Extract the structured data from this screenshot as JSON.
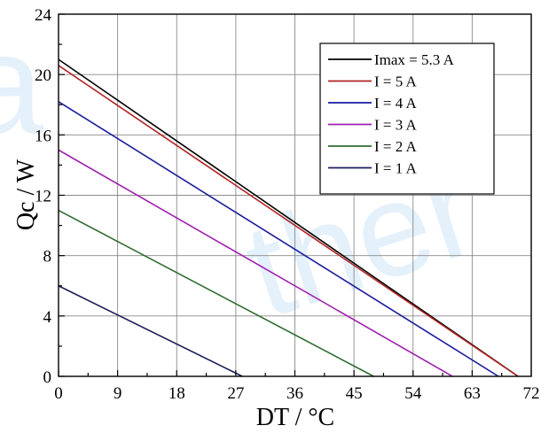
{
  "watermark": {
    "text": "ther",
    "partial_letter": "a"
  },
  "chart_data": {
    "type": "line",
    "title": "",
    "xlabel": "DT / °C",
    "ylabel": "Qc / W",
    "xlim": [
      0,
      72
    ],
    "ylim": [
      0,
      24
    ],
    "xticks": [
      0,
      9,
      18,
      27,
      36,
      45,
      54,
      63,
      72
    ],
    "yticks": [
      0,
      4,
      8,
      12,
      16,
      20,
      24
    ],
    "grid": true,
    "legend_position": "top-right",
    "series": [
      {
        "name": "Imax  = 5.3 A",
        "color": "#000000",
        "x": [
          0,
          70
        ],
        "y": [
          21.0,
          0
        ]
      },
      {
        "name": "I = 5 A",
        "color": "#b22222",
        "x": [
          0,
          70
        ],
        "y": [
          20.6,
          0
        ]
      },
      {
        "name": "I = 4 A",
        "color": "#1a1aa0",
        "x": [
          0,
          67
        ],
        "y": [
          18.2,
          0
        ]
      },
      {
        "name": "I = 3 A",
        "color": "#a020b0",
        "x": [
          0,
          60
        ],
        "y": [
          15.0,
          0
        ]
      },
      {
        "name": "I = 2 A",
        "color": "#2e6b2e",
        "x": [
          0,
          48
        ],
        "y": [
          11.0,
          0
        ]
      },
      {
        "name": "I = 1 A",
        "color": "#1c1c5a",
        "x": [
          0,
          28
        ],
        "y": [
          6.0,
          0
        ]
      }
    ]
  }
}
